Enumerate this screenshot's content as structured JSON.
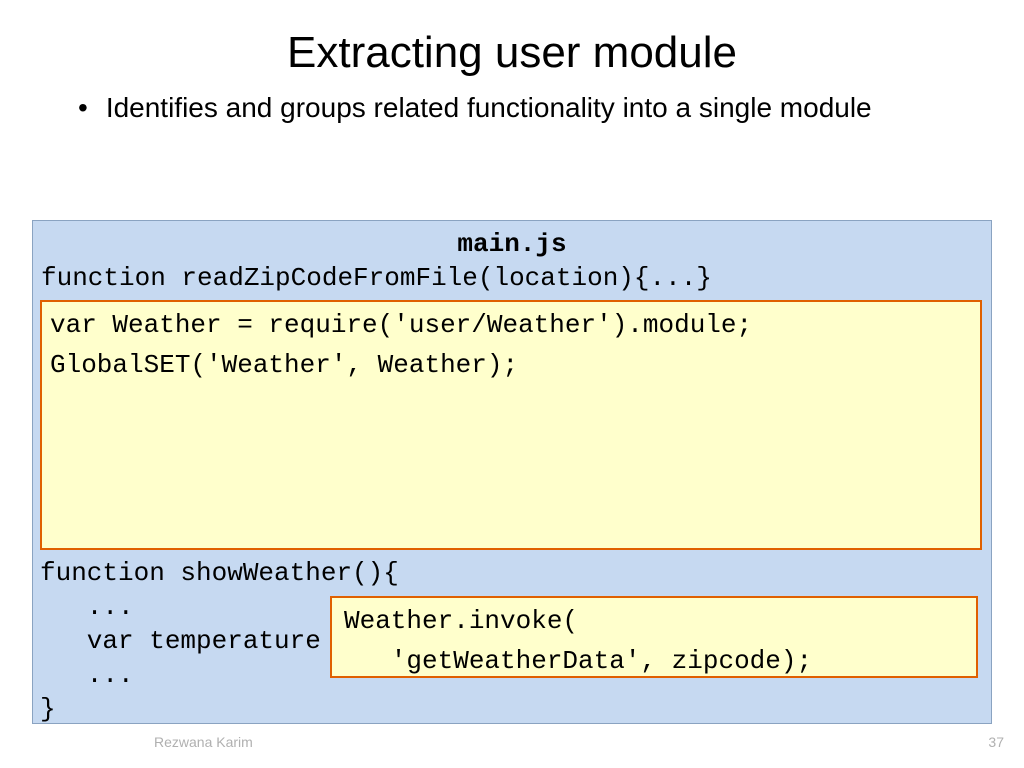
{
  "title": "Extracting user module",
  "bullet": "Identifies and groups related functionality into a single module",
  "code": {
    "filename": "main.js",
    "line_function_read": "function readZipCodeFromFile(location){...}",
    "highlight1_line1": "var Weather = require('user/Weather').module;",
    "highlight1_line2": "GlobalSET('Weather', Weather);",
    "show_fn_open": "function showWeather(){",
    "show_fn_dots1": "   ...",
    "show_fn_var": "   var temperature =",
    "show_fn_dots2": "   ...",
    "show_fn_close": "}",
    "highlight2_line1": "Weather.invoke(",
    "highlight2_line2": "   'getWeatherData', zipcode);"
  },
  "footer": {
    "author": "Rezwana Karim",
    "page": "37"
  },
  "colors": {
    "code_bg": "#c6d9f1",
    "highlight_bg": "#ffffcc",
    "highlight_border": "#e06000",
    "footer_text": "#b0b0b0"
  }
}
